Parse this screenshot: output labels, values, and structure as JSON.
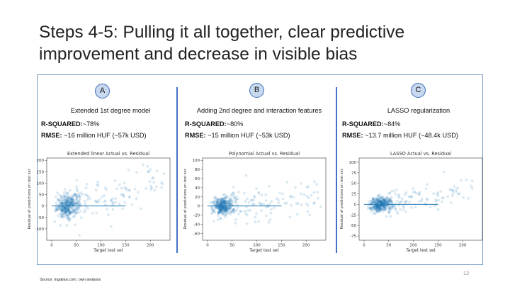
{
  "slide": {
    "title": "Steps 4-5: Pulling it all together, clear predictive improvement and decrease in visible bias",
    "page_number": "12",
    "source": "Source: ingatlan.com, own analysis"
  },
  "panels": [
    {
      "badge": "A",
      "heading": "Extended 1st degree model",
      "r2_label": "R-SQUARED:",
      "r2_value": "~78%",
      "rmse_label": "RMSE:",
      "rmse_value": " ~16 million HUF (~57k USD)"
    },
    {
      "badge": "B",
      "heading": "Adding 2nd degree and interaction features",
      "r2_label": "R-SQUARED:",
      "r2_value": "~80%",
      "rmse_label": "RMSE:",
      "rmse_value": " ~15 million HUF (~53k USD)"
    },
    {
      "badge": "C",
      "heading": "LASSO regularization",
      "r2_label": "R-SQUARED:",
      "r2_value": "~84%",
      "rmse_label": "RMSE:",
      "rmse_value": " ~13.7 million HUF (~48.4k USD)"
    }
  ],
  "chart_data": [
    {
      "type": "scatter",
      "title": "Extended linear Actual vs. Residual",
      "xlabel": "Target test set",
      "ylabel": "Residual of predictions on test set",
      "xlim": [
        -10,
        240
      ],
      "ylim": [
        -150,
        210
      ],
      "xticks": [
        0,
        50,
        100,
        150,
        200
      ],
      "yticks": [
        -100,
        -50,
        0,
        50,
        100,
        150,
        200
      ],
      "baseline": {
        "x0": 0,
        "x1": 150,
        "y": 0
      },
      "cloud": {
        "x_center": 33,
        "x_spread": 16,
        "slope": 0.55,
        "y_spread": 32,
        "n_dense": 330,
        "n_tail": 110
      },
      "color": "#1f77b4"
    },
    {
      "type": "scatter",
      "title": "Polynomial Actual vs. Residual",
      "xlabel": "Target test set",
      "ylabel": "Residual of predictions on test set",
      "xlim": [
        -10,
        240
      ],
      "ylim": [
        -75,
        105
      ],
      "xticks": [
        0,
        50,
        100,
        150,
        200
      ],
      "yticks": [
        -60,
        -40,
        -20,
        0,
        20,
        40,
        60,
        80,
        100
      ],
      "baseline": {
        "x0": 0,
        "x1": 150,
        "y": 0
      },
      "cloud": {
        "x_center": 32,
        "x_spread": 15,
        "slope": 0.12,
        "y_spread": 13,
        "n_dense": 330,
        "n_tail": 110
      },
      "color": "#1f77b4"
    },
    {
      "type": "scatter",
      "title": "LASSO Actual vs. Residual",
      "xlabel": "Target test set",
      "ylabel": "Residual of predictions on test set",
      "xlim": [
        -10,
        240
      ],
      "ylim": [
        -85,
        110
      ],
      "xticks": [
        0,
        50,
        100,
        150,
        200
      ],
      "yticks": [
        -75,
        -50,
        -25,
        0,
        25,
        50,
        75,
        100
      ],
      "baseline": {
        "x0": 0,
        "x1": 150,
        "y": 0
      },
      "cloud": {
        "x_center": 33,
        "x_spread": 15,
        "slope": 0.18,
        "y_spread": 11,
        "n_dense": 330,
        "n_tail": 110
      },
      "color": "#1f77b4"
    }
  ]
}
